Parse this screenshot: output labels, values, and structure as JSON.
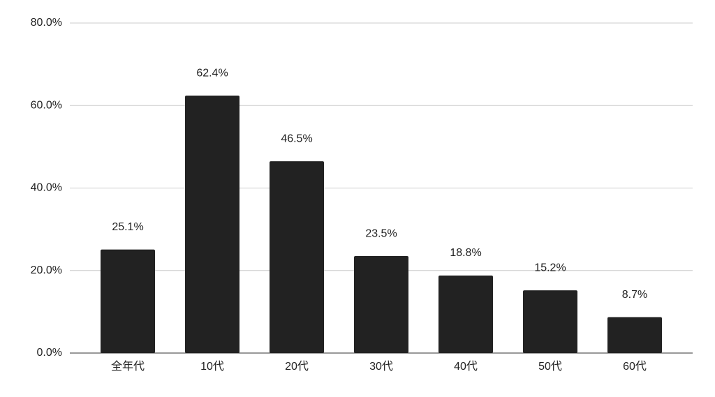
{
  "chart_data": {
    "type": "bar",
    "categories": [
      "全年代",
      "10代",
      "20代",
      "30代",
      "40代",
      "50代",
      "60代"
    ],
    "values": [
      25.1,
      62.4,
      46.5,
      23.5,
      18.8,
      15.2,
      8.7
    ],
    "value_labels": [
      "25.1%",
      "62.4%",
      "46.5%",
      "23.5%",
      "18.8%",
      "15.2%",
      "8.7%"
    ],
    "color": "#222222",
    "ylim": [
      0,
      80
    ],
    "yticks": [
      {
        "value": 0,
        "label": "0.0%"
      },
      {
        "value": 20,
        "label": "20.0%"
      },
      {
        "value": 40,
        "label": "40.0%"
      },
      {
        "value": 60,
        "label": "60.0%"
      },
      {
        "value": 80,
        "label": "80.0%"
      }
    ],
    "grid": true
  }
}
